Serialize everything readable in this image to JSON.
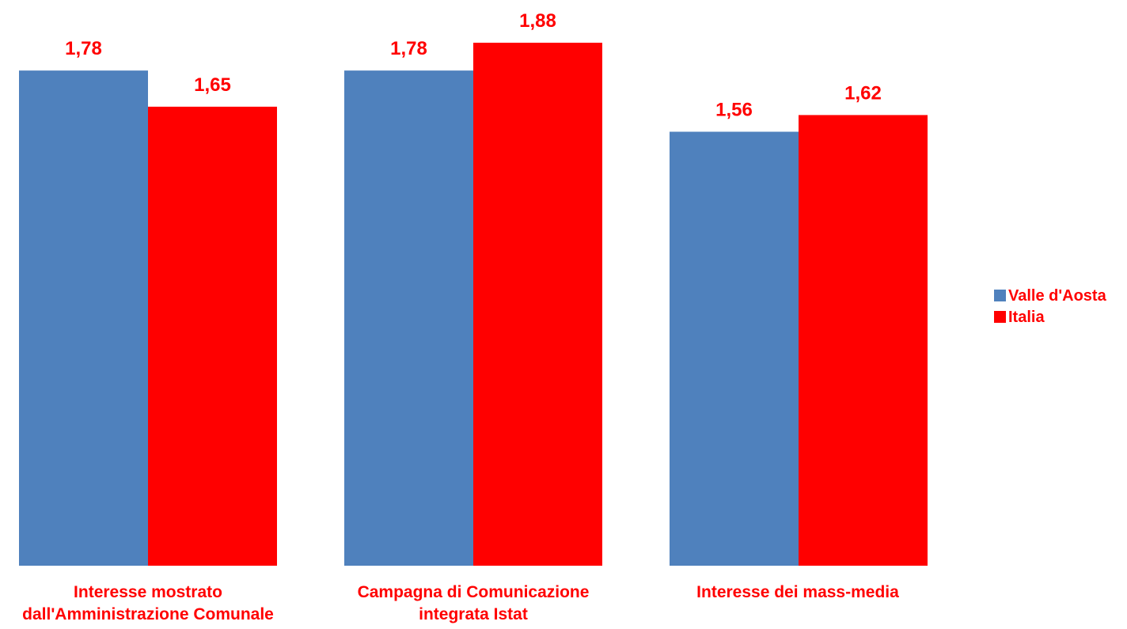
{
  "chart_data": {
    "type": "bar",
    "categories": [
      [
        "Interesse mostrato",
        "dall'Amministrazione Comunale"
      ],
      [
        "Campagna di Comunicazione",
        "integrata Istat"
      ],
      [
        "Interesse dei mass-media"
      ]
    ],
    "series": [
      {
        "name": "Valle d'Aosta",
        "color": "#4f81bd",
        "values": [
          1.78,
          1.78,
          1.56
        ],
        "labels": [
          "1,78",
          "1,78",
          "1,56"
        ]
      },
      {
        "name": "Italia",
        "color": "#ff0000",
        "values": [
          1.65,
          1.88,
          1.62
        ],
        "labels": [
          "1,65",
          "1,88",
          "1,62"
        ]
      }
    ],
    "ylim": [
      0,
      1.88
    ],
    "grid": false,
    "legend": "right",
    "title": "",
    "xlabel": "",
    "ylabel": ""
  }
}
